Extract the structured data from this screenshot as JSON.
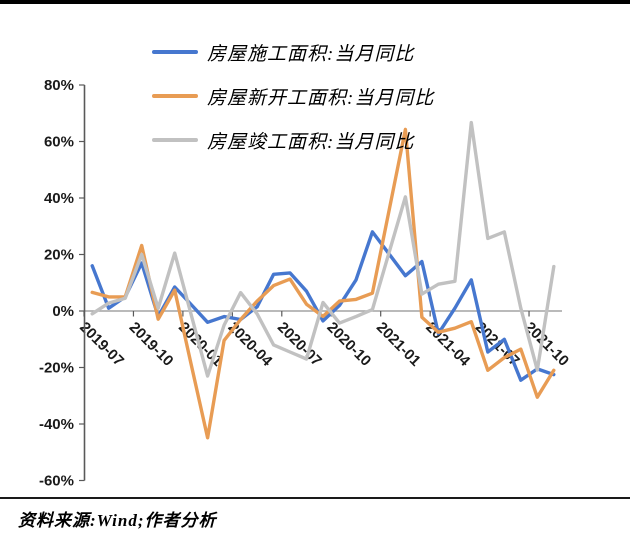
{
  "legend": {
    "items": [
      {
        "label": "房屋施工面积:当月同比",
        "color": "#4677cf"
      },
      {
        "label": "房屋新开工面积:当月同比",
        "color": "#e89c54"
      },
      {
        "label": "房屋竣工面积:当月同比",
        "color": "#c1c1c1"
      }
    ]
  },
  "footer": {
    "source_text": "资料来源:Wind;作者分析"
  },
  "chart_data": {
    "type": "line",
    "categories": [
      "2019-07",
      "2019-08",
      "2019-09",
      "2019-10",
      "2019-11",
      "2019-12",
      "2020-01",
      "2020-02",
      "2020-03",
      "2020-04",
      "2020-05",
      "2020-06",
      "2020-07",
      "2020-08",
      "2020-09",
      "2020-10",
      "2020-11",
      "2020-12",
      "2021-01",
      "2021-02",
      "2021-03",
      "2021-04",
      "2021-05",
      "2021-06",
      "2021-07",
      "2021-08",
      "2021-09",
      "2021-10",
      "2021-11"
    ],
    "series": [
      {
        "name": "房屋施工面积:当月同比",
        "color": "#4677cf",
        "values": [
          16,
          1,
          5,
          17,
          -2,
          8.5,
          2.3,
          -4,
          -2,
          -3,
          1.5,
          13,
          13.5,
          7,
          -3.5,
          2,
          11,
          28,
          20.3,
          12.5,
          17.5,
          -8,
          1,
          11,
          -14.5,
          -10,
          -24.5,
          -20.5,
          -22.5
        ]
      },
      {
        "name": "房屋新开工面积:当月同比",
        "color": "#e89c54",
        "values": [
          6.6,
          5,
          5,
          23.2,
          -2.9,
          7.4,
          -18.8,
          -44.9,
          -10.4,
          -3,
          3.5,
          9,
          11.3,
          2.4,
          -1.9,
          3.5,
          4.1,
          6.3,
          35.3,
          64.3,
          -2.2,
          -7.5,
          -6.1,
          -3.8,
          -21,
          -16.5,
          -13.5,
          -30.5,
          -21
        ]
      },
      {
        "name": "房屋竣工面积:当月同比",
        "color": "#c1c1c1",
        "values": [
          -1,
          2.8,
          4.5,
          20,
          1,
          20.5,
          -1.2,
          -23,
          -5,
          6.5,
          -1,
          -12,
          -14.5,
          -17,
          3,
          -4.3,
          -2,
          0.5,
          20.5,
          40.4,
          6,
          9.5,
          10.5,
          66.7,
          25.7,
          28,
          1,
          -20.9,
          15.7
        ]
      }
    ],
    "title": "",
    "xlabel": "",
    "ylabel": "",
    "ylim": [
      -60,
      80
    ],
    "y_tick_step": 20,
    "y_tick_labels": [
      "80%",
      "60%",
      "40%",
      "20%",
      "0%",
      "-20%",
      "-40%",
      "-60%"
    ],
    "y_tick_values": [
      80,
      60,
      40,
      20,
      0,
      -20,
      -40,
      -60
    ],
    "x_tick_labels": [
      "2019-07",
      "2019-10",
      "2020-01",
      "2020-04",
      "2020-07",
      "2020-10",
      "2021-01",
      "2021-04",
      "2021-07",
      "2021-10"
    ],
    "x_label_every": 3,
    "grid": "zero-line-only",
    "legend_position": "top-left"
  }
}
